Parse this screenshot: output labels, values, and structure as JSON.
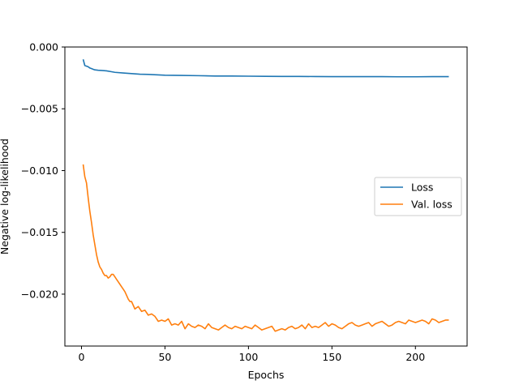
{
  "chart_data": {
    "type": "line",
    "title": "",
    "xlabel": "Epochs",
    "ylabel": "Negative log-likelihood",
    "xlim": [
      -9.95,
      230.95
    ],
    "ylim": [
      -0.0242,
      0.0
    ],
    "xticks": [
      0,
      50,
      100,
      150,
      200
    ],
    "xtick_labels": [
      "0",
      "50",
      "100",
      "150",
      "200"
    ],
    "yticks": [
      0.0,
      -0.005,
      -0.01,
      -0.015,
      -0.02
    ],
    "ytick_labels": [
      "0.000",
      "−0.005",
      "−0.010",
      "−0.015",
      "−0.020"
    ],
    "grid": false,
    "legend_position": "center-right",
    "series": [
      {
        "name": "Loss",
        "color": "#1f77b4",
        "x": [
          1,
          2,
          3,
          4,
          5,
          6,
          7,
          8,
          10,
          12,
          15,
          18,
          20,
          25,
          30,
          35,
          40,
          45,
          50,
          60,
          70,
          80,
          90,
          100,
          110,
          120,
          130,
          140,
          150,
          160,
          170,
          180,
          190,
          200,
          210,
          215,
          220
        ],
        "y": [
          -0.001,
          -0.0015,
          -0.00155,
          -0.0016,
          -0.0017,
          -0.00175,
          -0.0018,
          -0.00185,
          -0.00188,
          -0.0019,
          -0.00193,
          -0.002,
          -0.00205,
          -0.0021,
          -0.00215,
          -0.0022,
          -0.00222,
          -0.00225,
          -0.00228,
          -0.0023,
          -0.00232,
          -0.00235,
          -0.00235,
          -0.00236,
          -0.00237,
          -0.00238,
          -0.00238,
          -0.00239,
          -0.0024,
          -0.0024,
          -0.0024,
          -0.0024,
          -0.00241,
          -0.00241,
          -0.0024,
          -0.0024,
          -0.0024
        ]
      },
      {
        "name": "Val. loss",
        "color": "#ff7f0e",
        "x": [
          1,
          2,
          3,
          4,
          5,
          6,
          7,
          8,
          9,
          10,
          11,
          12,
          13,
          14,
          15,
          16,
          17,
          18,
          19,
          20,
          21,
          22,
          23,
          24,
          25,
          26,
          27,
          28,
          29,
          30,
          32,
          34,
          36,
          38,
          40,
          42,
          44,
          46,
          48,
          50,
          52,
          54,
          56,
          58,
          60,
          62,
          64,
          66,
          68,
          70,
          72,
          74,
          76,
          78,
          80,
          82,
          84,
          86,
          88,
          90,
          92,
          94,
          96,
          98,
          100,
          102,
          104,
          106,
          108,
          110,
          112,
          114,
          116,
          118,
          120,
          122,
          124,
          126,
          128,
          130,
          132,
          134,
          136,
          138,
          140,
          142,
          144,
          146,
          148,
          150,
          152,
          154,
          156,
          158,
          160,
          162,
          164,
          166,
          168,
          170,
          172,
          174,
          176,
          178,
          180,
          182,
          184,
          186,
          188,
          190,
          192,
          194,
          196,
          198,
          200,
          202,
          204,
          206,
          208,
          210,
          212,
          214,
          216,
          218,
          220
        ],
        "y": [
          -0.0095,
          -0.0105,
          -0.011,
          -0.0122,
          -0.0133,
          -0.0142,
          -0.0152,
          -0.016,
          -0.0168,
          -0.0174,
          -0.0178,
          -0.018,
          -0.0183,
          -0.0185,
          -0.0185,
          -0.0187,
          -0.0186,
          -0.0184,
          -0.0184,
          -0.0186,
          -0.0188,
          -0.019,
          -0.0192,
          -0.0194,
          -0.0196,
          -0.0198,
          -0.0201,
          -0.0204,
          -0.0206,
          -0.0206,
          -0.0212,
          -0.021,
          -0.0214,
          -0.0213,
          -0.0217,
          -0.0216,
          -0.0218,
          -0.0222,
          -0.0221,
          -0.0222,
          -0.022,
          -0.0225,
          -0.0224,
          -0.0225,
          -0.0222,
          -0.0228,
          -0.0224,
          -0.0226,
          -0.0227,
          -0.0225,
          -0.0226,
          -0.0228,
          -0.0224,
          -0.0227,
          -0.0228,
          -0.0229,
          -0.0227,
          -0.0225,
          -0.0227,
          -0.0228,
          -0.0226,
          -0.0227,
          -0.0228,
          -0.0226,
          -0.0227,
          -0.0228,
          -0.0225,
          -0.0227,
          -0.0229,
          -0.0228,
          -0.0227,
          -0.0226,
          -0.023,
          -0.0229,
          -0.0228,
          -0.0229,
          -0.0227,
          -0.0226,
          -0.0228,
          -0.0227,
          -0.0225,
          -0.0228,
          -0.0224,
          -0.0227,
          -0.0226,
          -0.0227,
          -0.0225,
          -0.0223,
          -0.0226,
          -0.0224,
          -0.0225,
          -0.0227,
          -0.0228,
          -0.0226,
          -0.0224,
          -0.0223,
          -0.0225,
          -0.0226,
          -0.0225,
          -0.0224,
          -0.0223,
          -0.0226,
          -0.0224,
          -0.0223,
          -0.0222,
          -0.0224,
          -0.0226,
          -0.0225,
          -0.0223,
          -0.0222,
          -0.0223,
          -0.0224,
          -0.0221,
          -0.0222,
          -0.0223,
          -0.0222,
          -0.0221,
          -0.0222,
          -0.0224,
          -0.022,
          -0.0221,
          -0.0223,
          -0.0222,
          -0.0221,
          -0.0221
        ]
      }
    ]
  }
}
